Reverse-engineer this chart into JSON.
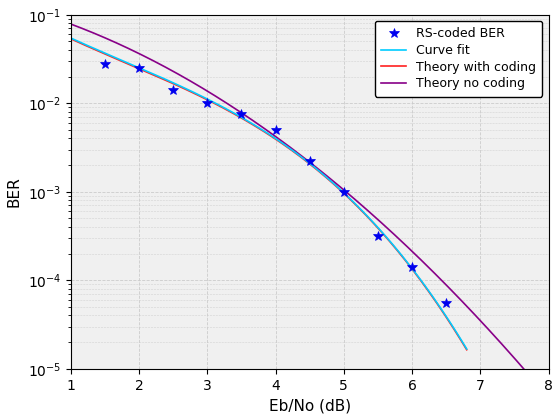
{
  "title": "",
  "xlabel": "Eb/No (dB)",
  "ylabel": "BER",
  "xlim": [
    1,
    8
  ],
  "ylim_log": [
    1e-05,
    0.1
  ],
  "rs_ber_x": [
    1.5,
    2.0,
    2.5,
    3.0,
    3.5,
    4.0,
    4.5,
    5.0,
    5.5,
    6.0,
    6.5
  ],
  "rs_ber_y": [
    0.028,
    0.025,
    0.014,
    0.01,
    0.0075,
    0.005,
    0.0022,
    0.001,
    0.00032,
    0.00014,
    5.5e-05
  ],
  "curve_fit_color": "#00CCFF",
  "theory_coding_color": "#FF2020",
  "theory_no_coding_color": "#880088",
  "marker_color": "#0000EE",
  "legend_labels": [
    "RS-coded BER",
    "Curve fit",
    "Theory with coding",
    "Theory no coding"
  ],
  "grid_color": "#CCCCCC",
  "background_color": "#F0F0F0",
  "axes_background": "#F0F0F0",
  "x_ticks": [
    1,
    2,
    3,
    4,
    5,
    6,
    7,
    8
  ],
  "theory_coding_x": [
    1.0,
    1.5,
    2.0,
    2.5,
    3.0,
    3.5,
    4.0,
    4.5,
    5.0,
    5.5,
    6.0,
    6.5,
    7.0
  ],
  "theory_coding_y": [
    0.055,
    0.035,
    0.026,
    0.015,
    0.0102,
    0.0072,
    0.0048,
    0.0021,
    0.00095,
    0.00029,
    0.000135,
    5e-05,
    8e-06
  ],
  "curve_fit_x": [
    1.0,
    1.5,
    2.0,
    2.5,
    3.0,
    3.5,
    4.0,
    4.5,
    5.0,
    5.5,
    6.0,
    6.5,
    7.0
  ],
  "curve_fit_y": [
    0.056,
    0.036,
    0.0265,
    0.0152,
    0.0104,
    0.0073,
    0.0049,
    0.00215,
    0.00096,
    0.000292,
    0.000136,
    5.1e-05,
    8.2e-06
  ],
  "no_coding_x": [
    1.0,
    1.5,
    2.0,
    2.5,
    3.0,
    3.5,
    4.0,
    4.5,
    5.0,
    5.5,
    6.0,
    6.5,
    7.0,
    7.5,
    8.0
  ],
  "no_coding_y": [
    0.085,
    0.055,
    0.035,
    0.022,
    0.013,
    0.0075,
    0.0042,
    0.0022,
    0.0011,
    0.0005,
    0.00022,
    9e-05,
    3.5e-05,
    1.3e-05,
    4.5e-06
  ]
}
